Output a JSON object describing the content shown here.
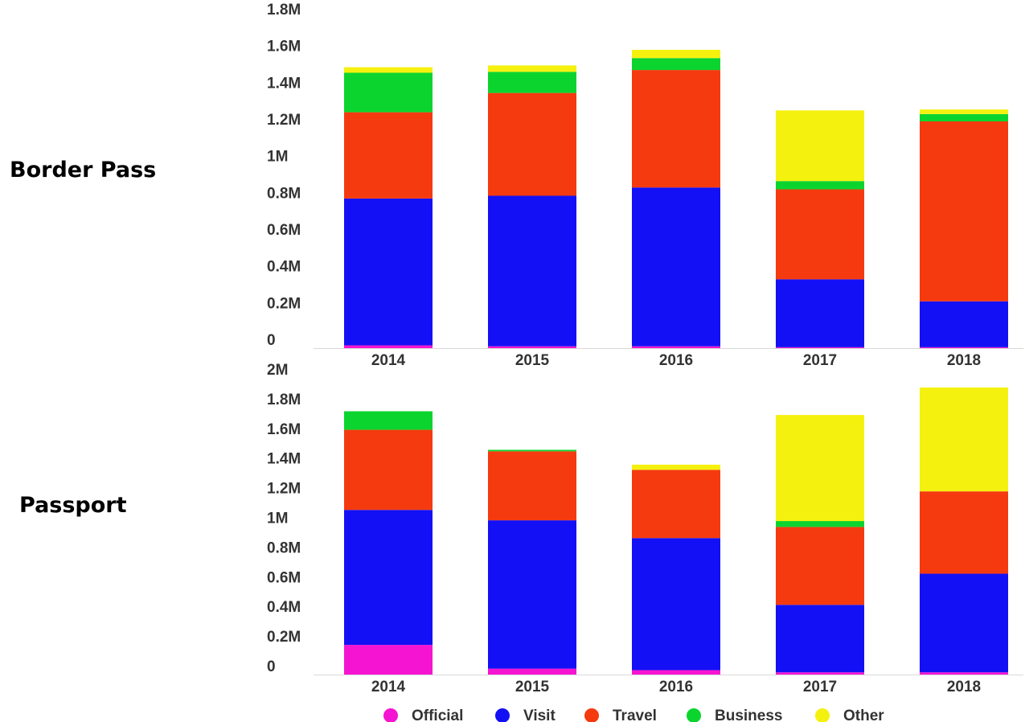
{
  "chart_data": [
    {
      "type": "bar",
      "stacked": true,
      "title": "Border Pass",
      "categories": [
        "2014",
        "2015",
        "2016",
        "2017",
        "2018"
      ],
      "ylim": [
        0,
        1800000
      ],
      "yticks": [
        0,
        200000,
        400000,
        600000,
        800000,
        1000000,
        1200000,
        1400000,
        1600000,
        1800000
      ],
      "ytick_labels": [
        "0",
        "0.2M",
        "0.4M",
        "0.6M",
        "0.8M",
        "1M",
        "1.2M",
        "1.4M",
        "1.6M",
        "1.8M"
      ],
      "series": [
        {
          "name": "Official",
          "color": "#f514d2",
          "values": [
            15000,
            10000,
            10000,
            5000,
            5000
          ]
        },
        {
          "name": "Visit",
          "color": "#1410f5",
          "values": [
            800000,
            820000,
            865000,
            370000,
            250000
          ]
        },
        {
          "name": "Travel",
          "color": "#f53a0f",
          "values": [
            470000,
            560000,
            640000,
            490000,
            980000
          ]
        },
        {
          "name": "Business",
          "color": "#0cd42f",
          "values": [
            215000,
            115000,
            65000,
            45000,
            40000
          ]
        },
        {
          "name": "Other",
          "color": "#f5f10f",
          "values": [
            30000,
            35000,
            45000,
            385000,
            25000
          ]
        }
      ]
    },
    {
      "type": "bar",
      "stacked": true,
      "title": "Passport",
      "categories": [
        "2014",
        "2015",
        "2016",
        "2017",
        "2018"
      ],
      "ylim": [
        0,
        2000000
      ],
      "yticks": [
        0,
        200000,
        400000,
        600000,
        800000,
        1000000,
        1200000,
        1400000,
        1600000,
        1800000,
        2000000
      ],
      "ytick_labels": [
        "0",
        "0.2M",
        "0.4M",
        "0.6M",
        "0.8M",
        "1M",
        "1.2M",
        "1.4M",
        "1.6M",
        "1.8M",
        "2M"
      ],
      "series": [
        {
          "name": "Official",
          "color": "#f514d2",
          "values": [
            200000,
            40000,
            30000,
            15000,
            15000
          ]
        },
        {
          "name": "Visit",
          "color": "#1410f5",
          "values": [
            910000,
            1000000,
            890000,
            455000,
            665000
          ]
        },
        {
          "name": "Travel",
          "color": "#f53a0f",
          "values": [
            540000,
            465000,
            460000,
            525000,
            555000
          ]
        },
        {
          "name": "Business",
          "color": "#0cd42f",
          "values": [
            125000,
            10000,
            0,
            40000,
            0
          ]
        },
        {
          "name": "Other",
          "color": "#f5f10f",
          "values": [
            0,
            0,
            35000,
            715000,
            700000
          ]
        }
      ]
    }
  ],
  "legend": {
    "position": "bottom",
    "items": [
      {
        "name": "Official",
        "color": "#f514d2"
      },
      {
        "name": "Visit",
        "color": "#1410f5"
      },
      {
        "name": "Travel",
        "color": "#f53a0f"
      },
      {
        "name": "Business",
        "color": "#0cd42f"
      },
      {
        "name": "Other",
        "color": "#f5f10f"
      }
    ]
  }
}
